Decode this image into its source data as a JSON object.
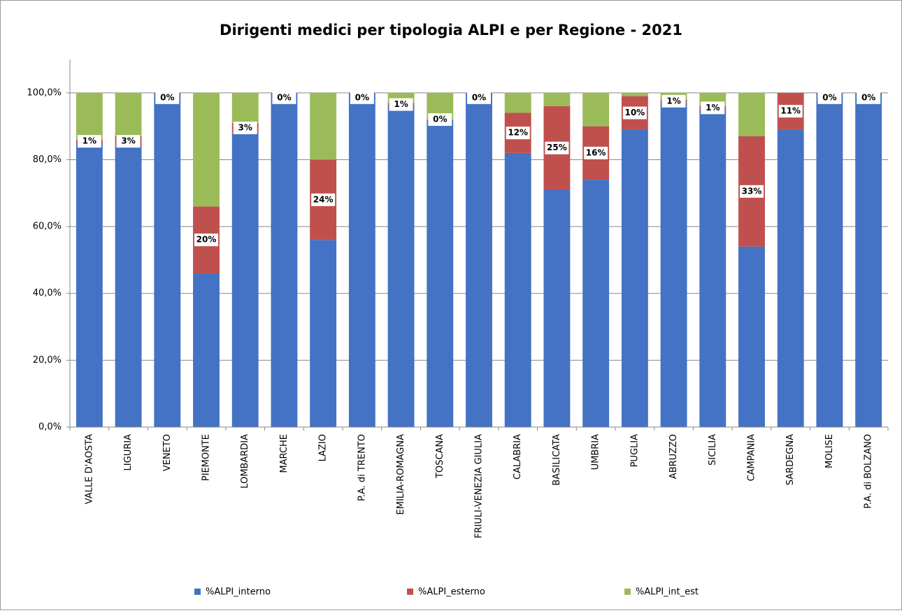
{
  "chart_data": {
    "type": "stacked_bar",
    "title": "Dirigenti medici per tipologia ALPI e per Regione - 2021",
    "categories": [
      "VALLE D'AOSTA",
      "LIGURIA",
      "VENETO",
      "PIEMONTE",
      "LOMBARDIA",
      "MARCHE",
      "LAZIO",
      "P.A. di TRENTO",
      "EMILIA-ROMAGNA",
      "TOSCANA",
      "FRIULI-VENEZIA GIULIA",
      "CALABRIA",
      "BASILICATA",
      "UMBRIA",
      "PUGLIA",
      "ABRUZZO",
      "SICILIA",
      "CAMPANIA",
      "SARDEGNA",
      "MOLISE",
      "P.A. di BOLZANO"
    ],
    "series": [
      {
        "name": "%ALPI_interno",
        "color": "#4472c4",
        "values": [
          85,
          84,
          100,
          46,
          88,
          100,
          56,
          100,
          96,
          92,
          100,
          82,
          71,
          74,
          89,
          97,
          95,
          54,
          89,
          100,
          100
        ]
      },
      {
        "name": "%ALPI_esterno",
        "color": "#c0504d",
        "values": [
          1,
          3,
          0,
          20,
          3,
          0,
          24,
          0,
          1,
          0,
          0,
          12,
          25,
          16,
          10,
          1,
          1,
          33,
          11,
          0,
          0
        ],
        "value_labels": [
          "1%",
          "3%",
          "0%",
          "20%",
          "3%",
          "0%",
          "24%",
          "0%",
          "1%",
          "0%",
          "0%",
          "12%",
          "25%",
          "16%",
          "10%",
          "1%",
          "1%",
          "33%",
          "11%",
          "0%",
          "0%"
        ]
      },
      {
        "name": "%ALPI_int_est",
        "color": "#9bbb59",
        "values": [
          14,
          13,
          0,
          34,
          9,
          0,
          20,
          0,
          3,
          8,
          0,
          6,
          4,
          10,
          1,
          2,
          4,
          13,
          0,
          0,
          0
        ]
      }
    ],
    "ylim": [
      0,
      110
    ],
    "yticks": [
      {
        "value": 0,
        "label": "0,0%"
      },
      {
        "value": 20,
        "label": "20,0%"
      },
      {
        "value": 40,
        "label": "40,0%"
      },
      {
        "value": 60,
        "label": "60,0%"
      },
      {
        "value": 80,
        "label": "80,0%"
      },
      {
        "value": 100,
        "label": "100,0%"
      }
    ],
    "grid": true,
    "legend": "bottom"
  }
}
